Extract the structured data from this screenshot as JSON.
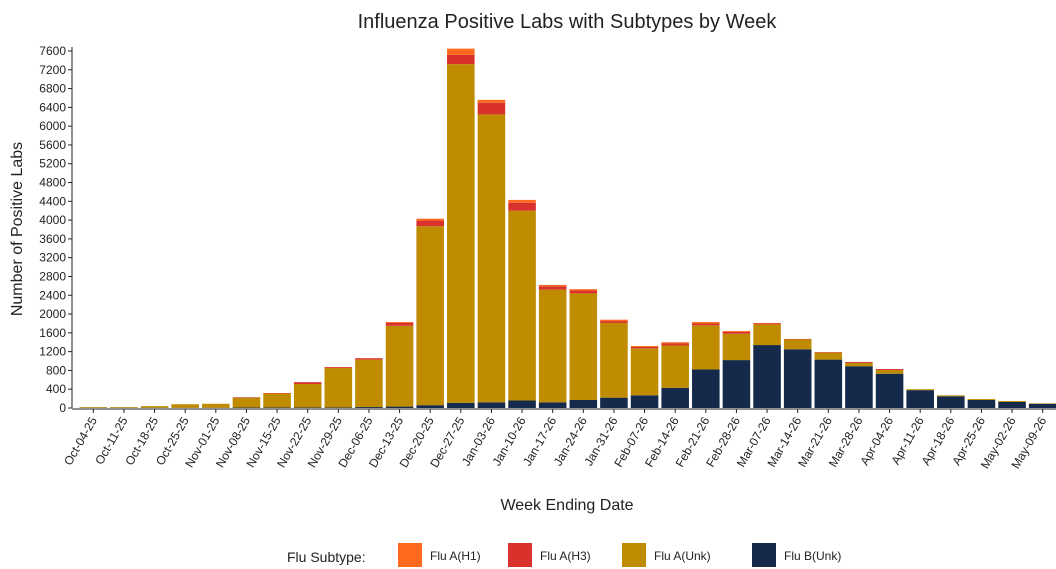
{
  "chart_data": {
    "type": "stacked_bar",
    "title": "Influenza Positive Labs with Subtypes by Week",
    "x_label": "Week Ending Date",
    "y_label": "Number of Positive Labs",
    "legend_title": "Flu Subtype:",
    "legend_position": "bottom",
    "categories": [
      "Oct-04-25",
      "Oct-11-25",
      "Oct-18-25",
      "Oct-25-25",
      "Nov-01-25",
      "Nov-08-25",
      "Nov-15-25",
      "Nov-22-25",
      "Nov-29-25",
      "Dec-06-25",
      "Dec-13-25",
      "Dec-20-25",
      "Dec-27-25",
      "Jan-03-26",
      "Jan-10-26",
      "Jan-17-26",
      "Jan-24-26",
      "Jan-31-26",
      "Feb-07-26",
      "Feb-14-26",
      "Feb-21-26",
      "Feb-28-26",
      "Mar-07-26",
      "Mar-14-26",
      "Mar-21-26",
      "Mar-28-26",
      "Apr-04-26",
      "Apr-11-26",
      "Apr-18-26",
      "Apr-25-26",
      "May-02-26",
      "May-09-26"
    ],
    "series": [
      {
        "name": "Flu A(H1)",
        "color": "#ff6a1f",
        "values": [
          0,
          0,
          0,
          0,
          0,
          0,
          0,
          0,
          0,
          0,
          20,
          40,
          130,
          60,
          60,
          30,
          30,
          30,
          20,
          20,
          30,
          20,
          10,
          0,
          0,
          0,
          0,
          0,
          0,
          0,
          0,
          0
        ]
      },
      {
        "name": "Flu A(H3)",
        "color": "#d9312b",
        "values": [
          0,
          0,
          0,
          0,
          0,
          10,
          10,
          40,
          20,
          30,
          60,
          120,
          200,
          250,
          170,
          70,
          60,
          40,
          30,
          50,
          40,
          40,
          20,
          10,
          10,
          20,
          20,
          0,
          0,
          0,
          0,
          0
        ]
      },
      {
        "name": "Flu A(Unk)",
        "color": "#bf8c00",
        "values": [
          15,
          15,
          35,
          75,
          85,
          210,
          300,
          500,
          840,
          1010,
          1720,
          3810,
          7210,
          6130,
          4040,
          2400,
          2270,
          1590,
          1000,
          900,
          940,
          560,
          440,
          210,
          150,
          70,
          80,
          20,
          20,
          20,
          20,
          10
        ]
      },
      {
        "name": "Flu B(Unk)",
        "color": "#15294b",
        "values": [
          5,
          5,
          5,
          5,
          5,
          10,
          10,
          10,
          10,
          20,
          30,
          60,
          110,
          120,
          160,
          120,
          170,
          220,
          270,
          430,
          820,
          1020,
          1340,
          1250,
          1030,
          890,
          730,
          380,
          250,
          170,
          130,
          90
        ]
      }
    ],
    "ylim": [
      0,
      7600
    ],
    "yticks": [
      0,
      400,
      800,
      1200,
      1600,
      2000,
      2400,
      2800,
      3200,
      3600,
      4000,
      4400,
      4800,
      5200,
      5600,
      6000,
      6400,
      6800,
      7200,
      7600
    ],
    "grid": false
  }
}
